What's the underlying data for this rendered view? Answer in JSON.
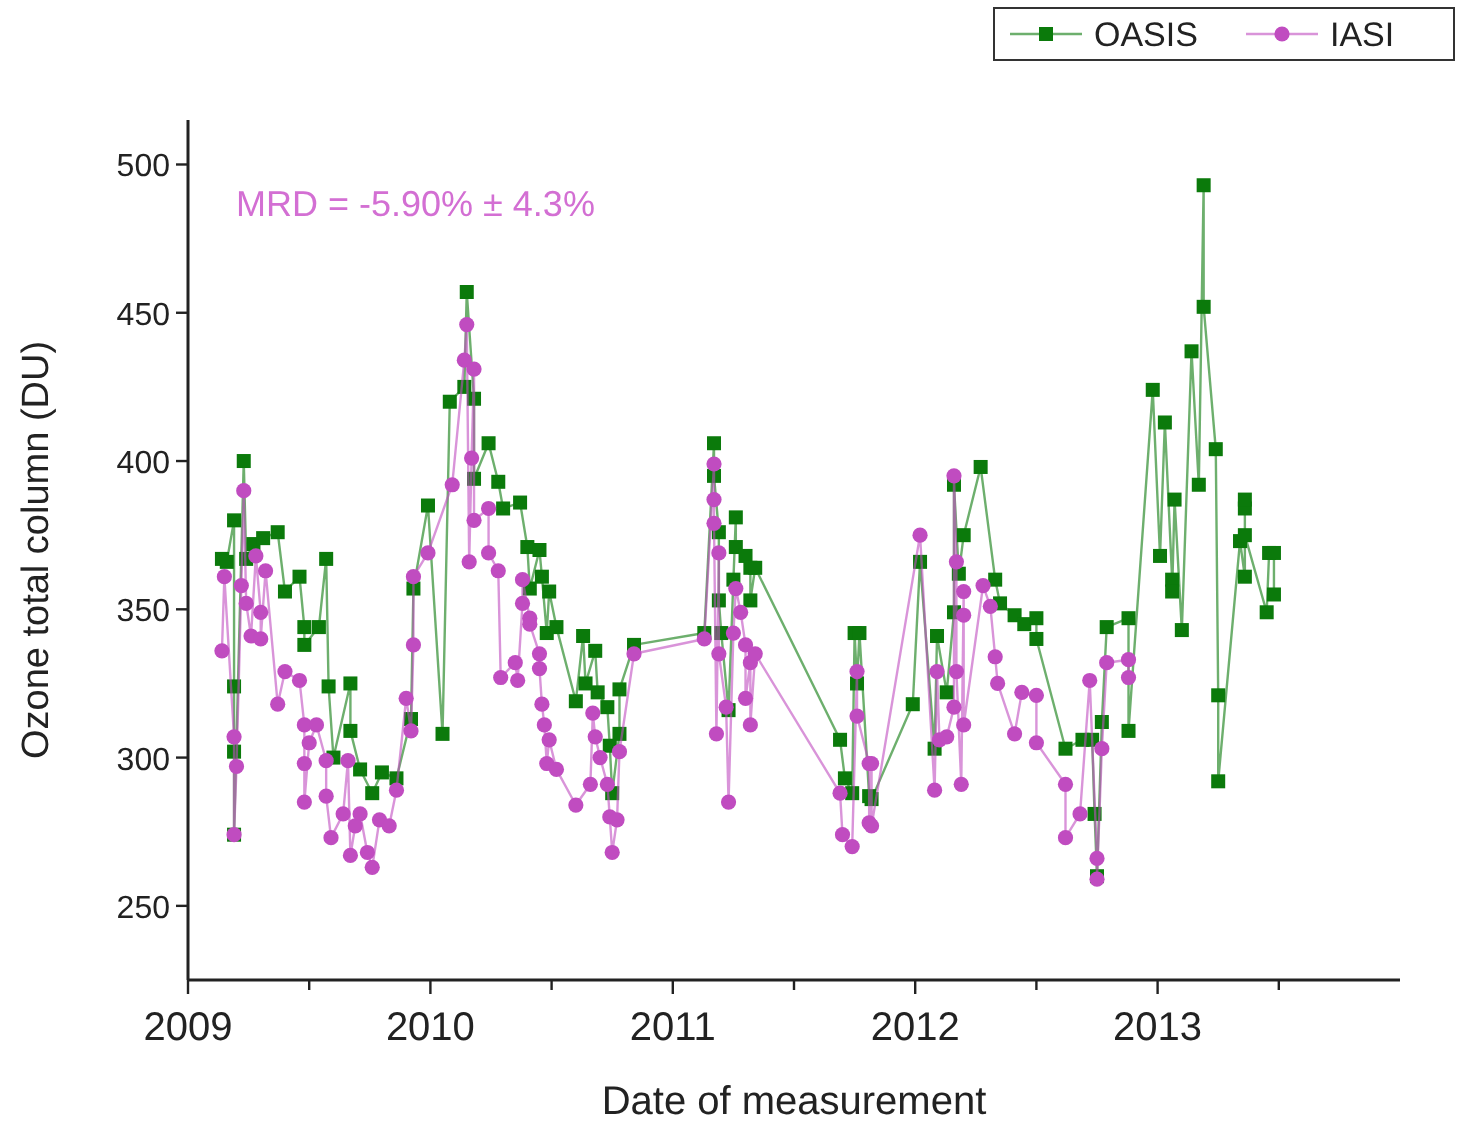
{
  "chart_data": {
    "type": "line",
    "xlabel": "Date of measurement",
    "ylabel": "Ozone total column (DU)",
    "annotations": [
      "MRD = -5.90% ± 4.3%"
    ],
    "xlim": [
      2009,
      2014
    ],
    "xticks": [
      2009,
      {
        "value": 2009.5,
        "label": null
      },
      2010,
      {
        "value": 2010.5,
        "label": null
      },
      2011,
      {
        "value": 2011.5,
        "label": null
      },
      2012,
      {
        "value": 2012.5,
        "label": null
      },
      2013,
      {
        "value": 2013.5,
        "label": null
      }
    ],
    "ylim": [
      225,
      515
    ],
    "yticks": [
      250,
      300,
      350,
      400,
      450,
      500
    ],
    "grid": false,
    "legend": "top right",
    "line_style": "solid",
    "series": [
      {
        "name": "OASIS",
        "color": "#0b7a0b",
        "marker": "square",
        "x": [
          2009.14,
          2009.16,
          2009.19,
          2009.19,
          2009.19,
          2009.19,
          2009.23,
          2009.24,
          2009.27,
          2009.31,
          2009.37,
          2009.4,
          2009.46,
          2009.48,
          2009.48,
          2009.54,
          2009.57,
          2009.58,
          2009.6,
          2009.67,
          2009.67,
          2009.71,
          2009.76,
          2009.8,
          2009.86,
          2009.92,
          2009.93,
          2009.99,
          2010.05,
          2010.08,
          2010.14,
          2010.15,
          2010.18,
          2010.18,
          2010.24,
          2010.28,
          2010.3,
          2010.37,
          2010.4,
          2010.41,
          2010.45,
          2010.46,
          2010.48,
          2010.49,
          2010.52,
          2010.6,
          2010.63,
          2010.64,
          2010.68,
          2010.69,
          2010.73,
          2010.74,
          2010.75,
          2010.78,
          2010.78,
          2010.84,
          2011.13,
          2011.17,
          2011.17,
          2011.19,
          2011.19,
          2011.2,
          2011.23,
          2011.25,
          2011.26,
          2011.26,
          2011.3,
          2011.32,
          2011.32,
          2011.34,
          2011.69,
          2011.71,
          2011.74,
          2011.75,
          2011.76,
          2011.77,
          2011.81,
          2011.82,
          2011.99,
          2012.02,
          2012.08,
          2012.09,
          2012.13,
          2012.16,
          2012.16,
          2012.18,
          2012.2,
          2012.27,
          2012.33,
          2012.35,
          2012.41,
          2012.45,
          2012.5,
          2012.5,
          2012.62,
          2012.69,
          2012.73,
          2012.74,
          2012.75,
          2012.77,
          2012.79,
          2012.88,
          2012.88,
          2012.98,
          2013.01,
          2013.03,
          2013.06,
          2013.06,
          2013.07,
          2013.1,
          2013.14,
          2013.17,
          2013.19,
          2013.19,
          2013.24,
          2013.25,
          2013.25,
          2013.34,
          2013.36,
          2013.36,
          2013.36,
          2013.36,
          2013.45,
          2013.46,
          2013.48,
          2013.48
        ],
        "values": [
          367,
          366,
          380,
          324,
          302,
          274,
          400,
          367,
          372,
          374,
          376,
          356,
          361,
          344,
          338,
          344,
          367,
          324,
          300,
          325,
          309,
          296,
          288,
          295,
          293,
          313,
          357,
          385,
          308,
          420,
          425,
          457,
          421,
          394,
          406,
          393,
          384,
          386,
          371,
          357,
          370,
          361,
          342,
          356,
          344,
          319,
          341,
          325,
          336,
          322,
          317,
          304,
          288,
          308,
          323,
          338,
          342,
          406,
          395,
          376,
          353,
          342,
          316,
          360,
          381,
          371,
          368,
          364,
          353,
          364,
          306,
          293,
          288,
          342,
          325,
          342,
          287,
          286,
          318,
          366,
          303,
          341,
          322,
          349,
          392,
          362,
          375,
          398,
          360,
          352,
          348,
          345,
          347,
          340,
          303,
          306,
          306,
          281,
          260,
          312,
          344,
          347,
          309,
          424,
          368,
          413,
          360,
          356,
          387,
          343,
          437,
          392,
          493,
          452,
          404,
          321,
          292,
          373,
          361,
          384,
          387,
          375,
          349,
          369,
          369,
          355
        ]
      },
      {
        "name": "IASI",
        "color": "#c04cc0",
        "marker": "circle",
        "x": [
          2009.14,
          2009.15,
          2009.19,
          2009.19,
          2009.2,
          2009.22,
          2009.23,
          2009.24,
          2009.26,
          2009.28,
          2009.3,
          2009.3,
          2009.32,
          2009.37,
          2009.4,
          2009.46,
          2009.48,
          2009.48,
          2009.48,
          2009.5,
          2009.53,
          2009.57,
          2009.57,
          2009.59,
          2009.64,
          2009.66,
          2009.67,
          2009.69,
          2009.71,
          2009.74,
          2009.76,
          2009.79,
          2009.83,
          2009.86,
          2009.9,
          2009.92,
          2009.93,
          2009.93,
          2009.99,
          2010.09,
          2010.14,
          2010.15,
          2010.16,
          2010.17,
          2010.18,
          2010.18,
          2010.24,
          2010.24,
          2010.28,
          2010.29,
          2010.35,
          2010.36,
          2010.38,
          2010.38,
          2010.41,
          2010.41,
          2010.45,
          2010.45,
          2010.46,
          2010.47,
          2010.48,
          2010.49,
          2010.52,
          2010.6,
          2010.66,
          2010.67,
          2010.68,
          2010.7,
          2010.73,
          2010.74,
          2010.75,
          2010.77,
          2010.78,
          2010.84,
          2011.13,
          2011.17,
          2011.17,
          2011.17,
          2011.18,
          2011.19,
          2011.19,
          2011.22,
          2011.23,
          2011.25,
          2011.26,
          2011.28,
          2011.3,
          2011.3,
          2011.32,
          2011.32,
          2011.34,
          2011.69,
          2011.7,
          2011.74,
          2011.76,
          2011.76,
          2011.81,
          2011.81,
          2011.82,
          2011.82,
          2012.02,
          2012.08,
          2012.09,
          2012.1,
          2012.13,
          2012.16,
          2012.16,
          2012.17,
          2012.17,
          2012.19,
          2012.2,
          2012.2,
          2012.2,
          2012.28,
          2012.31,
          2012.33,
          2012.34,
          2012.41,
          2012.44,
          2012.5,
          2012.5,
          2012.62,
          2012.62,
          2012.68,
          2012.72,
          2012.75,
          2012.75,
          2012.77,
          2012.79,
          2012.88,
          2012.88
        ],
        "values": [
          336,
          361,
          307,
          274,
          297,
          358,
          390,
          352,
          341,
          368,
          349,
          340,
          363,
          318,
          329,
          326,
          311,
          298,
          285,
          305,
          311,
          299,
          287,
          273,
          281,
          299,
          267,
          277,
          281,
          268,
          263,
          279,
          277,
          289,
          320,
          309,
          338,
          361,
          369,
          392,
          434,
          446,
          366,
          401,
          431,
          380,
          384,
          369,
          363,
          327,
          332,
          326,
          352,
          360,
          347,
          345,
          335,
          330,
          318,
          311,
          298,
          306,
          296,
          284,
          291,
          315,
          307,
          300,
          291,
          280,
          268,
          279,
          302,
          335,
          340,
          399,
          387,
          379,
          308,
          369,
          335,
          317,
          285,
          342,
          357,
          349,
          338,
          320,
          332,
          311,
          335,
          288,
          274,
          270,
          329,
          314,
          298,
          278,
          298,
          277,
          375,
          289,
          329,
          306,
          307,
          317,
          395,
          366,
          329,
          291,
          356,
          348,
          311,
          358,
          351,
          334,
          325,
          308,
          322,
          321,
          305,
          291,
          273,
          281,
          326,
          266,
          259,
          303,
          332,
          333,
          327
        ]
      }
    ]
  }
}
